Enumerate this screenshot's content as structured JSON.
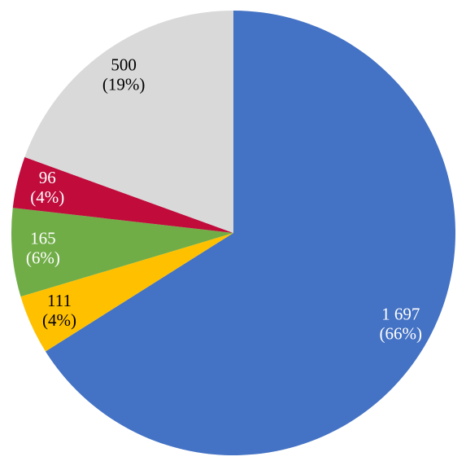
{
  "chart_data": {
    "type": "pie",
    "values": [
      1697,
      111,
      165,
      96,
      500
    ],
    "value_labels": [
      "1 697",
      "111",
      "165",
      "96",
      "500"
    ],
    "percent_labels": [
      "(66%)",
      "(4%)",
      "(6%)",
      "(4%)",
      "(19%)"
    ],
    "colors": [
      "#4472c4",
      "#ffc000",
      "#70ad47",
      "#c00b3b",
      "#d9d9d9"
    ],
    "label_colors": [
      "#ffffff",
      "#000000",
      "#ffffff",
      "#ffffff",
      "#000000"
    ],
    "start_angle": 0,
    "direction": "clockwise"
  }
}
